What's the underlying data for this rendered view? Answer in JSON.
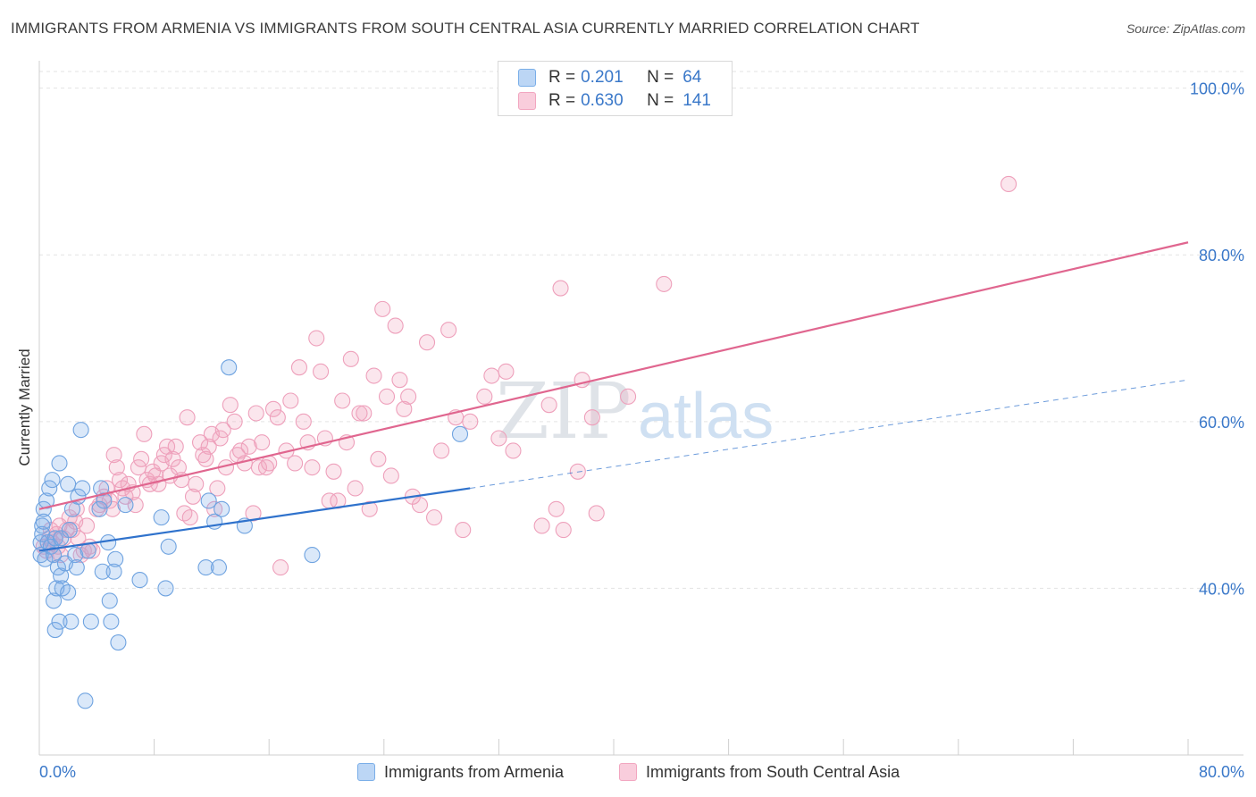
{
  "title": "IMMIGRANTS FROM ARMENIA VS IMMIGRANTS FROM SOUTH CENTRAL ASIA CURRENTLY MARRIED CORRELATION CHART",
  "source": "Source: ZipAtlas.com",
  "colors": {
    "blue": "#7aaee8",
    "blue_line": "#2f72cc",
    "pink": "#f2a6c0",
    "pink_line": "#e0668f",
    "axis_text": "#3a78c9"
  },
  "legend": {
    "r_label": "R =",
    "n_label": "N =",
    "series": [
      {
        "name": "Immigrants from Armenia",
        "r": "0.201",
        "n": "64"
      },
      {
        "name": "Immigrants from South Central Asia",
        "r": "0.630",
        "n": "141"
      }
    ]
  },
  "chart_data": {
    "type": "scatter",
    "title": "IMMIGRANTS FROM ARMENIA VS IMMIGRANTS FROM SOUTH CENTRAL ASIA CURRENTLY MARRIED CORRELATION CHART",
    "xlabel": "",
    "ylabel": "Currently Married",
    "xlim": [
      0,
      80
    ],
    "ylim": [
      20,
      102
    ],
    "x_tick_labels": [
      "0.0%",
      "80.0%"
    ],
    "y_tick_labels": [
      "40.0%",
      "60.0%",
      "80.0%",
      "100.0%"
    ],
    "y_ticks": [
      40,
      60,
      80,
      100
    ],
    "watermark": "ZIPatlas",
    "series": [
      {
        "name": "Immigrants from Armenia",
        "r": 0.201,
        "n": 64,
        "trend": {
          "x": [
            0,
            30
          ],
          "y": [
            44.5,
            52.0
          ],
          "extended_to": [
            80,
            65.0
          ]
        },
        "points": [
          [
            0.1,
            45.5
          ],
          [
            0.1,
            44.0
          ],
          [
            0.2,
            47.5
          ],
          [
            0.2,
            46.5
          ],
          [
            0.3,
            49.5
          ],
          [
            0.3,
            48.0
          ],
          [
            0.4,
            43.5
          ],
          [
            0.5,
            50.5
          ],
          [
            0.6,
            45.5
          ],
          [
            0.7,
            52.0
          ],
          [
            0.8,
            45.0
          ],
          [
            0.9,
            53.0
          ],
          [
            1.0,
            44.0
          ],
          [
            1.0,
            38.5
          ],
          [
            1.1,
            46.0
          ],
          [
            1.1,
            35.0
          ],
          [
            1.2,
            40.0
          ],
          [
            1.3,
            42.5
          ],
          [
            1.4,
            55.0
          ],
          [
            1.4,
            36.0
          ],
          [
            1.5,
            46.0
          ],
          [
            1.5,
            41.5
          ],
          [
            1.6,
            40.0
          ],
          [
            1.8,
            43.0
          ],
          [
            2.0,
            52.5
          ],
          [
            2.0,
            39.5
          ],
          [
            2.1,
            47.0
          ],
          [
            2.2,
            36.0
          ],
          [
            2.3,
            49.5
          ],
          [
            2.5,
            44.0
          ],
          [
            2.6,
            42.5
          ],
          [
            2.7,
            51.0
          ],
          [
            2.9,
            59.0
          ],
          [
            3.0,
            52.0
          ],
          [
            3.2,
            26.5
          ],
          [
            3.4,
            44.5
          ],
          [
            3.6,
            36.0
          ],
          [
            4.2,
            49.5
          ],
          [
            4.3,
            52.0
          ],
          [
            4.5,
            50.5
          ],
          [
            4.4,
            42.0
          ],
          [
            4.8,
            45.5
          ],
          [
            4.9,
            38.5
          ],
          [
            5.0,
            36.0
          ],
          [
            5.2,
            42.0
          ],
          [
            5.3,
            43.5
          ],
          [
            5.5,
            33.5
          ],
          [
            6.0,
            50.0
          ],
          [
            7.0,
            41.0
          ],
          [
            8.5,
            48.5
          ],
          [
            9.0,
            45.0
          ],
          [
            8.8,
            40.0
          ],
          [
            11.6,
            42.5
          ],
          [
            11.8,
            50.5
          ],
          [
            12.2,
            48.0
          ],
          [
            12.5,
            42.5
          ],
          [
            12.7,
            49.5
          ],
          [
            13.2,
            66.5
          ],
          [
            14.3,
            47.5
          ],
          [
            19.0,
            44.0
          ],
          [
            29.3,
            58.5
          ]
        ]
      },
      {
        "name": "Immigrants from South Central Asia",
        "r": 0.63,
        "n": 141,
        "trend": {
          "x": [
            0,
            80
          ],
          "y": [
            49.5,
            81.5
          ]
        },
        "points": [
          [
            0.3,
            45.0
          ],
          [
            0.5,
            44.5
          ],
          [
            0.7,
            46.0
          ],
          [
            0.9,
            45.5
          ],
          [
            1.0,
            44.0
          ],
          [
            1.2,
            46.5
          ],
          [
            1.3,
            45.0
          ],
          [
            1.5,
            44.0
          ],
          [
            1.7,
            46.0
          ],
          [
            1.9,
            47.0
          ],
          [
            2.1,
            48.5
          ],
          [
            2.3,
            47.0
          ],
          [
            2.5,
            48.0
          ],
          [
            2.7,
            46.0
          ],
          [
            2.9,
            44.0
          ],
          [
            3.1,
            44.5
          ],
          [
            3.3,
            47.5
          ],
          [
            3.5,
            45.0
          ],
          [
            3.7,
            44.5
          ],
          [
            4.0,
            49.5
          ],
          [
            4.2,
            50.0
          ],
          [
            4.5,
            51.0
          ],
          [
            4.7,
            52.0
          ],
          [
            4.9,
            50.5
          ],
          [
            5.1,
            49.5
          ],
          [
            5.2,
            56.0
          ],
          [
            5.4,
            54.5
          ],
          [
            5.6,
            53.0
          ],
          [
            5.8,
            52.0
          ],
          [
            6.0,
            51.0
          ],
          [
            6.2,
            52.5
          ],
          [
            6.5,
            51.5
          ],
          [
            6.7,
            50.0
          ],
          [
            6.9,
            54.5
          ],
          [
            7.1,
            55.5
          ],
          [
            7.3,
            58.5
          ],
          [
            7.5,
            53.0
          ],
          [
            7.7,
            52.5
          ],
          [
            7.9,
            54.0
          ],
          [
            8.1,
            53.5
          ],
          [
            8.3,
            52.5
          ],
          [
            8.5,
            55.0
          ],
          [
            8.7,
            56.0
          ],
          [
            8.9,
            57.0
          ],
          [
            9.1,
            53.5
          ],
          [
            9.3,
            55.5
          ],
          [
            9.5,
            57.0
          ],
          [
            9.7,
            54.5
          ],
          [
            9.9,
            53.0
          ],
          [
            10.1,
            49.0
          ],
          [
            10.3,
            60.5
          ],
          [
            10.5,
            48.5
          ],
          [
            10.7,
            51.0
          ],
          [
            10.9,
            52.5
          ],
          [
            11.2,
            57.5
          ],
          [
            11.4,
            56.0
          ],
          [
            11.6,
            55.5
          ],
          [
            11.8,
            57.0
          ],
          [
            12.0,
            58.5
          ],
          [
            12.2,
            49.5
          ],
          [
            12.4,
            52.0
          ],
          [
            12.6,
            58.0
          ],
          [
            12.8,
            59.0
          ],
          [
            13.0,
            54.5
          ],
          [
            13.3,
            62.0
          ],
          [
            13.6,
            60.0
          ],
          [
            13.8,
            56.0
          ],
          [
            14.0,
            56.5
          ],
          [
            14.3,
            55.0
          ],
          [
            14.6,
            57.0
          ],
          [
            14.9,
            49.0
          ],
          [
            15.1,
            61.0
          ],
          [
            15.3,
            54.5
          ],
          [
            15.5,
            57.5
          ],
          [
            15.8,
            54.5
          ],
          [
            16.0,
            55.0
          ],
          [
            16.3,
            61.5
          ],
          [
            16.6,
            60.5
          ],
          [
            16.8,
            42.5
          ],
          [
            17.2,
            56.5
          ],
          [
            17.5,
            62.5
          ],
          [
            17.8,
            55.0
          ],
          [
            18.1,
            66.5
          ],
          [
            18.4,
            60.0
          ],
          [
            18.7,
            57.5
          ],
          [
            19.0,
            54.5
          ],
          [
            19.3,
            70.0
          ],
          [
            19.6,
            66.0
          ],
          [
            19.9,
            58.0
          ],
          [
            20.2,
            50.5
          ],
          [
            20.5,
            54.0
          ],
          [
            20.8,
            50.5
          ],
          [
            21.1,
            62.5
          ],
          [
            21.4,
            57.5
          ],
          [
            21.7,
            67.5
          ],
          [
            22.0,
            52.0
          ],
          [
            22.3,
            61.0
          ],
          [
            22.6,
            61.0
          ],
          [
            23.0,
            49.5
          ],
          [
            23.3,
            65.5
          ],
          [
            23.6,
            55.5
          ],
          [
            23.9,
            73.5
          ],
          [
            24.2,
            63.0
          ],
          [
            24.5,
            53.5
          ],
          [
            24.8,
            71.5
          ],
          [
            25.1,
            65.0
          ],
          [
            25.4,
            61.5
          ],
          [
            25.7,
            63.0
          ],
          [
            26.0,
            51.0
          ],
          [
            26.5,
            50.0
          ],
          [
            27.0,
            69.5
          ],
          [
            27.5,
            48.5
          ],
          [
            28.0,
            56.5
          ],
          [
            28.5,
            71.0
          ],
          [
            29.0,
            60.5
          ],
          [
            29.5,
            47.0
          ],
          [
            30.0,
            60.0
          ],
          [
            31.0,
            63.0
          ],
          [
            31.5,
            65.5
          ],
          [
            32.0,
            58.0
          ],
          [
            32.5,
            66.0
          ],
          [
            33.0,
            56.5
          ],
          [
            35.0,
            47.5
          ],
          [
            35.5,
            62.0
          ],
          [
            36.0,
            49.5
          ],
          [
            36.3,
            76.0
          ],
          [
            36.5,
            47.0
          ],
          [
            37.5,
            54.0
          ],
          [
            37.8,
            65.0
          ],
          [
            38.5,
            60.5
          ],
          [
            38.8,
            49.0
          ],
          [
            41.0,
            63.0
          ],
          [
            43.5,
            76.5
          ],
          [
            67.5,
            88.5
          ],
          [
            0.8,
            47.0
          ],
          [
            1.4,
            47.5
          ],
          [
            2.6,
            49.5
          ]
        ]
      }
    ]
  }
}
